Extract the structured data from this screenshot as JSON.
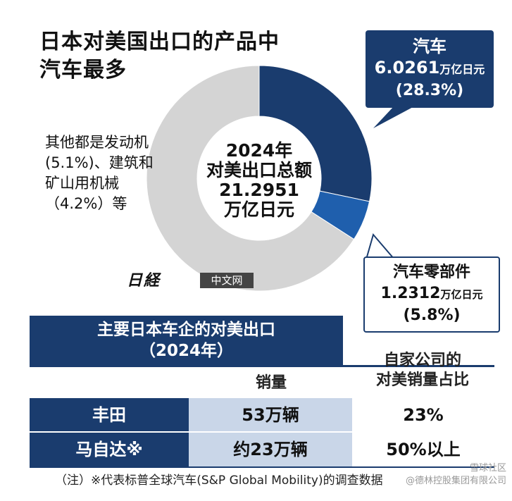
{
  "title": {
    "line1": "日本对美国出口的产品中",
    "line2": "汽车最多"
  },
  "chart_data": {
    "type": "pie",
    "center_label": [
      "2024年",
      "对美出口总额",
      "21.2951",
      "万亿日元"
    ],
    "slices": [
      {
        "label": "汽车",
        "value_text": "6.0261",
        "unit": "万亿日元",
        "percent": 28.3,
        "percent_text": "(28.3%)",
        "color": "#1a3c6e"
      },
      {
        "label": "汽车零部件",
        "value_text": "1.2312",
        "unit": "万亿日元",
        "percent": 5.8,
        "percent_text": "(5.8%)",
        "color": "#1f5fad"
      },
      {
        "label": "其他",
        "percent": 65.9,
        "color": "#d4d4d4"
      }
    ],
    "others_annotation": [
      "其他都是发动机",
      "(5.1%)、建筑和",
      "矿山用机械",
      "（4.2%）等"
    ]
  },
  "logo": {
    "mark": "日経",
    "label": "中文网"
  },
  "table": {
    "header_line1": "主要日本车企的对美出口",
    "header_line2": "（2024年）",
    "col_sales": "销量",
    "col_share_line1": "自家公司的",
    "col_share_line2": "对美销量占比",
    "rows": [
      {
        "name": "丰田",
        "sales": "53万辆",
        "share": "23%"
      },
      {
        "name": "马自达※",
        "sales": "约23万辆",
        "share": "50%以上"
      }
    ]
  },
  "note": "（注）※代表标普全球汽车(S&P Global Mobility)的调查数据",
  "watermark": {
    "line1": "雪球社区",
    "line2": "@德林控股集团有限公司"
  }
}
